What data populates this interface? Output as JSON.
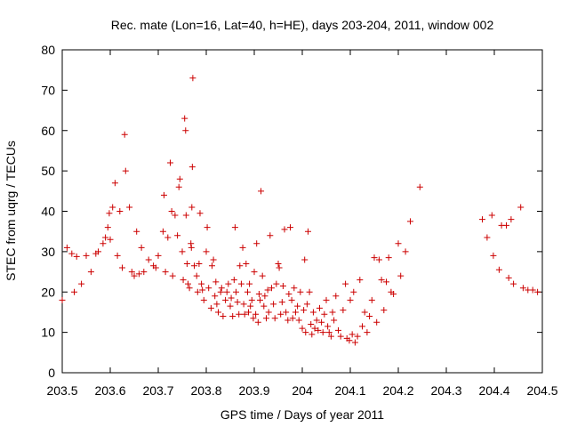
{
  "chart_data": {
    "type": "scatter",
    "title": "Rec. mate (Lon=16, Lat=40, h=HE), days 203-204, 2011, window 002",
    "xlabel": "GPS time / Days of year 2011",
    "ylabel": "STEC from uqrg / TECUs",
    "xlim": [
      203.5,
      204.5
    ],
    "ylim": [
      0,
      80
    ],
    "x_ticks": [
      "203.5",
      "203.6",
      "203.7",
      "203.8",
      "203.9",
      "204",
      "204.1",
      "204.2",
      "204.3",
      "204.4",
      "204.5"
    ],
    "y_ticks": [
      "0",
      "10",
      "20",
      "30",
      "40",
      "50",
      "60",
      "70",
      "80"
    ],
    "marker": "+",
    "marker_color": "#cc0000",
    "grid": false,
    "points": [
      [
        203.5,
        18
      ],
      [
        203.51,
        31
      ],
      [
        203.52,
        29.5
      ],
      [
        203.525,
        20
      ],
      [
        203.53,
        28.8
      ],
      [
        203.54,
        22
      ],
      [
        203.55,
        29
      ],
      [
        203.56,
        25
      ],
      [
        203.57,
        29.5
      ],
      [
        203.575,
        30
      ],
      [
        203.585,
        32
      ],
      [
        203.59,
        33.5
      ],
      [
        203.595,
        36
      ],
      [
        203.598,
        39.5
      ],
      [
        203.6,
        33
      ],
      [
        203.605,
        41
      ],
      [
        203.61,
        47
      ],
      [
        203.615,
        29
      ],
      [
        203.62,
        40
      ],
      [
        203.625,
        26
      ],
      [
        203.63,
        59
      ],
      [
        203.632,
        50
      ],
      [
        203.64,
        41
      ],
      [
        203.645,
        25
      ],
      [
        203.65,
        24
      ],
      [
        203.655,
        35
      ],
      [
        203.66,
        24.5
      ],
      [
        203.665,
        31
      ],
      [
        203.67,
        25
      ],
      [
        203.68,
        28
      ],
      [
        203.69,
        26.5
      ],
      [
        203.695,
        26
      ],
      [
        203.7,
        29
      ],
      [
        203.71,
        35
      ],
      [
        203.712,
        44
      ],
      [
        203.715,
        25
      ],
      [
        203.72,
        33.5
      ],
      [
        203.725,
        52
      ],
      [
        203.728,
        40
      ],
      [
        203.73,
        24
      ],
      [
        203.735,
        39
      ],
      [
        203.74,
        34
      ],
      [
        203.743,
        46
      ],
      [
        203.745,
        48
      ],
      [
        203.75,
        30
      ],
      [
        203.752,
        23
      ],
      [
        203.755,
        63
      ],
      [
        203.757,
        60
      ],
      [
        203.758,
        39
      ],
      [
        203.76,
        27
      ],
      [
        203.762,
        22
      ],
      [
        203.765,
        21
      ],
      [
        203.768,
        32
      ],
      [
        203.769,
        31
      ],
      [
        203.77,
        41
      ],
      [
        203.771,
        51
      ],
      [
        203.772,
        73
      ],
      [
        203.775,
        26.5
      ],
      [
        203.78,
        24
      ],
      [
        203.782,
        20
      ],
      [
        203.785,
        27
      ],
      [
        203.787,
        39.5
      ],
      [
        203.79,
        22
      ],
      [
        203.792,
        20.5
      ],
      [
        203.795,
        18
      ],
      [
        203.8,
        30
      ],
      [
        203.802,
        36
      ],
      [
        203.805,
        21
      ],
      [
        203.81,
        16
      ],
      [
        203.812,
        26.5
      ],
      [
        203.815,
        28
      ],
      [
        203.818,
        19
      ],
      [
        203.82,
        22.5
      ],
      [
        203.822,
        17
      ],
      [
        203.825,
        15
      ],
      [
        203.83,
        20
      ],
      [
        203.832,
        21
      ],
      [
        203.835,
        14
      ],
      [
        203.84,
        18
      ],
      [
        203.843,
        20
      ],
      [
        203.846,
        22
      ],
      [
        203.85,
        16.5
      ],
      [
        203.852,
        18.5
      ],
      [
        203.855,
        14
      ],
      [
        203.858,
        23
      ],
      [
        203.86,
        36
      ],
      [
        203.862,
        20
      ],
      [
        203.865,
        17.5
      ],
      [
        203.868,
        14.5
      ],
      [
        203.87,
        26.5
      ],
      [
        203.873,
        22
      ],
      [
        203.876,
        31
      ],
      [
        203.878,
        17
      ],
      [
        203.88,
        14.5
      ],
      [
        203.883,
        27
      ],
      [
        203.886,
        20
      ],
      [
        203.888,
        15
      ],
      [
        203.89,
        22
      ],
      [
        203.892,
        16.5
      ],
      [
        203.895,
        18
      ],
      [
        203.898,
        13.5
      ],
      [
        203.9,
        25
      ],
      [
        203.903,
        14.5
      ],
      [
        203.905,
        32
      ],
      [
        203.908,
        12.5
      ],
      [
        203.91,
        19.5
      ],
      [
        203.912,
        18
      ],
      [
        203.914,
        45
      ],
      [
        203.917,
        24
      ],
      [
        203.92,
        16.5
      ],
      [
        203.922,
        19
      ],
      [
        203.925,
        13.5
      ],
      [
        203.928,
        20.5
      ],
      [
        203.93,
        15
      ],
      [
        203.933,
        34
      ],
      [
        203.936,
        21
      ],
      [
        203.94,
        17
      ],
      [
        203.943,
        13.5
      ],
      [
        203.946,
        22
      ],
      [
        203.95,
        27
      ],
      [
        203.952,
        26
      ],
      [
        203.955,
        14.5
      ],
      [
        203.958,
        17.5
      ],
      [
        203.96,
        21.5
      ],
      [
        203.963,
        35.5
      ],
      [
        203.966,
        15
      ],
      [
        203.97,
        13
      ],
      [
        203.972,
        19.5
      ],
      [
        203.975,
        36
      ],
      [
        203.978,
        18
      ],
      [
        203.98,
        13.5
      ],
      [
        203.983,
        21
      ],
      [
        203.986,
        15
      ],
      [
        203.99,
        16.5
      ],
      [
        203.993,
        13
      ],
      [
        203.996,
        20
      ],
      [
        204,
        11
      ],
      [
        204.003,
        15.5
      ],
      [
        204.005,
        28
      ],
      [
        204.007,
        10
      ],
      [
        204.01,
        17
      ],
      [
        204.012,
        35
      ],
      [
        204.015,
        20
      ],
      [
        204.018,
        12
      ],
      [
        204.02,
        9.5
      ],
      [
        204.023,
        15
      ],
      [
        204.026,
        11
      ],
      [
        204.03,
        13
      ],
      [
        204.033,
        10.5
      ],
      [
        204.036,
        16
      ],
      [
        204.04,
        12.5
      ],
      [
        204.043,
        10
      ],
      [
        204.046,
        14.5
      ],
      [
        204.05,
        18
      ],
      [
        204.053,
        11.5
      ],
      [
        204.056,
        10
      ],
      [
        204.06,
        9
      ],
      [
        204.063,
        15
      ],
      [
        204.066,
        13
      ],
      [
        204.07,
        19
      ],
      [
        204.075,
        10.5
      ],
      [
        204.08,
        9
      ],
      [
        204.085,
        15.5
      ],
      [
        204.09,
        22
      ],
      [
        204.093,
        8.5
      ],
      [
        204.098,
        8
      ],
      [
        204.1,
        18
      ],
      [
        204.104,
        9.5
      ],
      [
        204.107,
        20
      ],
      [
        204.11,
        7.5
      ],
      [
        204.115,
        9
      ],
      [
        204.12,
        23
      ],
      [
        204.125,
        11.5
      ],
      [
        204.13,
        15
      ],
      [
        204.135,
        10
      ],
      [
        204.14,
        14
      ],
      [
        204.145,
        18
      ],
      [
        204.15,
        28.5
      ],
      [
        204.155,
        12.5
      ],
      [
        204.16,
        28
      ],
      [
        204.165,
        23
      ],
      [
        204.17,
        15.5
      ],
      [
        204.175,
        22.5
      ],
      [
        204.18,
        28.5
      ],
      [
        204.185,
        20
      ],
      [
        204.19,
        19.5
      ],
      [
        204.2,
        32
      ],
      [
        204.205,
        24
      ],
      [
        204.215,
        30
      ],
      [
        204.225,
        37.5
      ],
      [
        204.245,
        46
      ],
      [
        204.375,
        38
      ],
      [
        204.385,
        33.5
      ],
      [
        204.395,
        39
      ],
      [
        204.398,
        29
      ],
      [
        204.41,
        25.5
      ],
      [
        204.415,
        36.5
      ],
      [
        204.425,
        36.5
      ],
      [
        204.43,
        23.5
      ],
      [
        204.435,
        38
      ],
      [
        204.44,
        22
      ],
      [
        204.455,
        41
      ],
      [
        204.46,
        21
      ],
      [
        204.47,
        20.5
      ],
      [
        204.48,
        20.5
      ],
      [
        204.49,
        20
      ]
    ]
  }
}
